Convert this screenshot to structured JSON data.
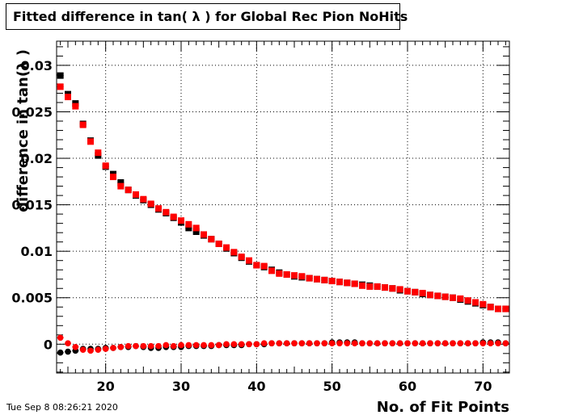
{
  "title": "Fitted difference in tan( λ ) for Global Rec Pion NoHits",
  "timestamp": "Tue Sep  8 08:26:21 2020",
  "chart_data": {
    "type": "scatter",
    "xlabel": "No. of Fit Points",
    "ylabel": "difference in tan(λ )",
    "xlim": [
      13.5,
      73.5
    ],
    "ylim": [
      -0.0031,
      0.0326
    ],
    "x_ticks": [
      20,
      30,
      40,
      50,
      60,
      70
    ],
    "x_tick_labels": [
      "20",
      "30",
      "40",
      "50",
      "60",
      "70"
    ],
    "y_ticks": [
      0,
      0.005,
      0.01,
      0.015,
      0.02,
      0.025,
      0.03
    ],
    "y_tick_labels": [
      "0",
      "0.005",
      "0.01",
      "0.015",
      "0.02",
      "0.025",
      "0.03"
    ],
    "grid": true,
    "x": [
      14,
      15,
      16,
      17,
      18,
      19,
      20,
      21,
      22,
      23,
      24,
      25,
      26,
      27,
      28,
      29,
      30,
      31,
      32,
      33,
      34,
      35,
      36,
      37,
      38,
      39,
      40,
      41,
      42,
      43,
      44,
      45,
      46,
      47,
      48,
      49,
      50,
      51,
      52,
      53,
      54,
      55,
      56,
      57,
      58,
      59,
      60,
      61,
      62,
      63,
      64,
      65,
      66,
      67,
      68,
      69,
      70,
      71,
      72,
      73
    ],
    "series": [
      {
        "color": "#000000",
        "marker": "square",
        "values": [
          0.0289,
          0.0269,
          0.0259,
          0.0237,
          0.0219,
          0.0203,
          0.0191,
          0.0183,
          0.0174,
          0.0166,
          0.016,
          0.0155,
          0.015,
          0.0145,
          0.0141,
          0.0136,
          0.0131,
          0.0125,
          0.0121,
          0.0117,
          0.0113,
          0.0108,
          0.0103,
          0.0098,
          0.0093,
          0.0089,
          0.0085,
          0.0083,
          0.008,
          0.0077,
          0.0075,
          0.0073,
          0.0072,
          0.0071,
          0.007,
          0.0069,
          0.0068,
          0.0067,
          0.0066,
          0.0065,
          0.0064,
          0.0063,
          0.0062,
          0.0061,
          0.006,
          0.0058,
          0.0057,
          0.0056,
          0.0054,
          0.0053,
          0.0052,
          0.0051,
          0.005,
          0.0048,
          0.0046,
          0.0044,
          0.0042,
          0.004,
          0.0038,
          0.0038
        ]
      },
      {
        "color": "#ff0000",
        "marker": "square",
        "values": [
          0.0277,
          0.0266,
          0.0256,
          0.0236,
          0.0218,
          0.0206,
          0.0192,
          0.018,
          0.017,
          0.0166,
          0.0161,
          0.0156,
          0.0151,
          0.0146,
          0.0142,
          0.0137,
          0.0133,
          0.0129,
          0.0125,
          0.0118,
          0.0113,
          0.0108,
          0.0104,
          0.0099,
          0.0094,
          0.009,
          0.0085,
          0.0084,
          0.0079,
          0.0076,
          0.0075,
          0.0074,
          0.0073,
          0.0071,
          0.007,
          0.0069,
          0.0068,
          0.0067,
          0.0066,
          0.0065,
          0.0063,
          0.0062,
          0.0062,
          0.0061,
          0.006,
          0.0059,
          0.0057,
          0.0056,
          0.0055,
          0.0053,
          0.0052,
          0.0051,
          0.005,
          0.0049,
          0.0047,
          0.0045,
          0.0043,
          0.004,
          0.0038,
          0.0038
        ]
      },
      {
        "color": "#000000",
        "marker": "circle",
        "values": [
          -0.0009,
          -0.0008,
          -0.0007,
          -0.0005,
          -0.0005,
          -0.0005,
          -0.0004,
          -0.0004,
          -0.0003,
          -0.0003,
          -0.0002,
          -0.0003,
          -0.0004,
          -0.0004,
          -0.0003,
          -0.0003,
          -0.0003,
          -0.0002,
          -0.0002,
          -0.0002,
          -0.0002,
          -0.0001,
          -0.0001,
          -0.0001,
          -0.0001,
          0.0,
          0.0,
          0.0,
          0.0001,
          0.0001,
          0.0001,
          0.0001,
          0.0001,
          0.0001,
          0.0001,
          0.0001,
          0.0002,
          0.0002,
          0.0002,
          0.0002,
          0.0001,
          0.0001,
          0.0001,
          0.0001,
          0.0001,
          0.0001,
          0.0001,
          0.0001,
          0.0001,
          0.0001,
          0.0001,
          0.0001,
          0.0001,
          0.0001,
          0.0001,
          0.0001,
          0.0002,
          0.0002,
          0.0002,
          0.0001
        ]
      },
      {
        "color": "#ff0000",
        "marker": "circle",
        "values": [
          0.0007,
          0.0001,
          -0.0003,
          -0.0006,
          -0.0007,
          -0.0006,
          -0.0005,
          -0.0004,
          -0.0003,
          -0.0002,
          -0.0002,
          -0.0002,
          -0.0002,
          -0.0002,
          -0.0001,
          -0.0002,
          -0.0001,
          -0.0001,
          -0.0001,
          -0.0001,
          -0.0001,
          -0.0001,
          0.0,
          0.0,
          0.0,
          0.0,
          0.0,
          0.0001,
          0.0001,
          0.0001,
          0.0001,
          0.0001,
          0.0001,
          0.0001,
          0.0001,
          0.0001,
          0.0001,
          0.0001,
          0.0001,
          0.0001,
          0.0001,
          0.0001,
          0.0001,
          0.0001,
          0.0001,
          0.0001,
          0.0001,
          0.0001,
          0.0001,
          0.0001,
          0.0001,
          0.0001,
          0.0001,
          0.0001,
          0.0001,
          0.0001,
          0.0001,
          0.0001,
          0.0001,
          0.0001
        ]
      }
    ]
  }
}
